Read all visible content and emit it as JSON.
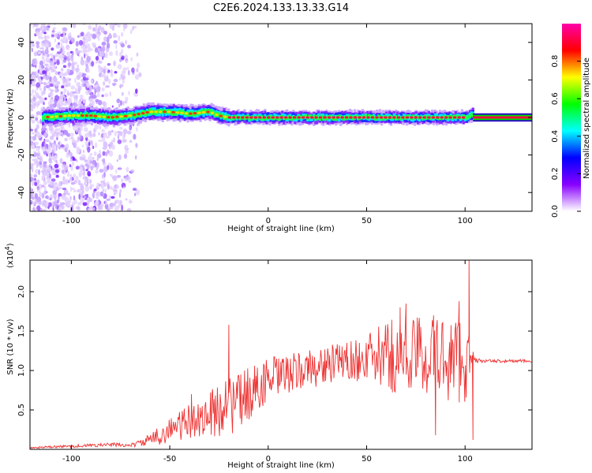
{
  "title": "C2E6.2024.133.13.33.G14",
  "chart_data": [
    {
      "type": "heatmap",
      "xlabel": "Height of straight line (km)",
      "ylabel": "Frequency (Hz)",
      "xlim": [
        -121,
        134
      ],
      "ylim": [
        -50,
        50
      ],
      "xticks": [
        -100,
        -50,
        0,
        50,
        100
      ],
      "xtick_labels": [
        "-100",
        "-50",
        "0",
        "50",
        "100"
      ],
      "yticks": [
        -40,
        -20,
        0,
        20,
        40
      ],
      "ytick_labels": [
        "-40",
        "-20",
        "0",
        "20",
        "40"
      ],
      "colorbar": {
        "label": "Normalized spectral amplitude",
        "range": [
          0,
          1
        ],
        "ticks": [
          0.0,
          0.2,
          0.4,
          0.6,
          0.8
        ],
        "tick_labels": [
          "0.0",
          "0.2",
          "0.4",
          "0.6",
          "0.8"
        ],
        "colors": [
          "#ffffff",
          "#8800ff",
          "#0000ff",
          "#00ffff",
          "#00ff00",
          "#ffff00",
          "#ff0000",
          "#ff00aa"
        ]
      },
      "ridge": {
        "x": [
          -115,
          -100,
          -90,
          -80,
          -70,
          -60,
          -50,
          -40,
          -30,
          -25,
          -20,
          -10,
          0,
          20,
          40,
          60,
          80,
          95,
          100,
          104,
          134
        ],
        "center_hz": [
          0,
          1,
          1,
          0,
          1,
          3,
          3,
          2,
          3,
          1,
          0,
          0,
          0,
          0,
          0,
          0,
          0,
          0,
          0,
          2,
          0
        ]
      },
      "grid": false
    },
    {
      "type": "line",
      "xlabel": "Height of straight line (km)",
      "ylabel": "SNR (10 * v/v)",
      "y_multiplier": "(x10",
      "y_multiplier_exp": "4",
      "y_multiplier_close": ")",
      "xlim": [
        -121,
        134
      ],
      "ylim": [
        0,
        24000
      ],
      "xticks": [
        -100,
        -50,
        0,
        50,
        100
      ],
      "xtick_labels": [
        "-100",
        "-50",
        "0",
        "50",
        "100"
      ],
      "yticks": [
        5000,
        10000,
        15000,
        20000
      ],
      "ytick_labels": [
        "0.5",
        "1.0",
        "1.5",
        "2.0"
      ],
      "series": [
        {
          "color": "#ee3333",
          "x": [
            -121,
            -110,
            -100,
            -90,
            -80,
            -70,
            -65,
            -60,
            -55,
            -50,
            -45,
            -40,
            -35,
            -30,
            -25,
            -22,
            -20,
            -15,
            -10,
            -5,
            0,
            10,
            20,
            30,
            40,
            50,
            60,
            70,
            80,
            90,
            100,
            105,
            110,
            120,
            134
          ],
          "y": [
            200,
            300,
            400,
            500,
            600,
            500,
            800,
            1200,
            1800,
            2500,
            3000,
            3500,
            4000,
            4300,
            5000,
            7000,
            5500,
            6000,
            7000,
            8000,
            8800,
            9500,
            10200,
            10700,
            11200,
            11500,
            11800,
            12000,
            12000,
            11500,
            11500,
            11300,
            11200,
            11200,
            11200
          ],
          "spread": [
            100,
            150,
            200,
            200,
            250,
            250,
            400,
            800,
            1200,
            1600,
            2000,
            2200,
            2500,
            3000,
            3500,
            5000,
            4000,
            3500,
            3500,
            3000,
            3000,
            2500,
            2500,
            2500,
            2500,
            3000,
            4500,
            5500,
            5000,
            5500,
            6000,
            300,
            200,
            200,
            200
          ]
        }
      ],
      "spikes": [
        {
          "x": -39,
          "y": 7000
        },
        {
          "x": -20,
          "y": 15800
        },
        {
          "x": -12,
          "y": 10000
        },
        {
          "x": 40,
          "y": 13500
        },
        {
          "x": 67,
          "y": 18000
        },
        {
          "x": 70,
          "y": 18500
        },
        {
          "x": 84,
          "y": 17000
        },
        {
          "x": 85,
          "y": 1800
        },
        {
          "x": 97,
          "y": 18800
        },
        {
          "x": 102,
          "y": 24000
        },
        {
          "x": 104,
          "y": 1200
        }
      ],
      "grid": false
    }
  ]
}
